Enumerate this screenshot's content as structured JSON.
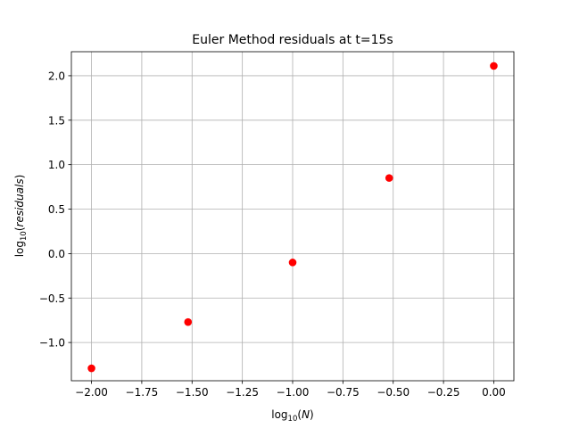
{
  "chart_data": {
    "type": "scatter",
    "title": "Euler Method residuals at t=15s",
    "xlabel": {
      "prefix": "log",
      "sub": "10",
      "arg": "N"
    },
    "ylabel": {
      "prefix": "log",
      "sub": "10",
      "arg": "residuals"
    },
    "xlim": [
      -2.1,
      0.1
    ],
    "ylim": [
      -1.43,
      2.27
    ],
    "xticks": [
      -2.0,
      -1.75,
      -1.5,
      -1.25,
      -1.0,
      -0.75,
      -0.5,
      -0.25,
      0.0
    ],
    "xtick_labels": [
      "−2.00",
      "−1.75",
      "−1.50",
      "−1.25",
      "−1.00",
      "−0.75",
      "−0.50",
      "−0.25",
      "0.00"
    ],
    "yticks": [
      -1.0,
      -0.5,
      0.0,
      0.5,
      1.0,
      1.5,
      2.0
    ],
    "ytick_labels": [
      "−1.0",
      "−0.5",
      "0.0",
      "0.5",
      "1.0",
      "1.5",
      "2.0"
    ],
    "grid": true,
    "series": [
      {
        "color": "#ff0000",
        "marker": "circle",
        "x": [
          -2.0,
          -1.52,
          -1.0,
          -0.52,
          0.0
        ],
        "y": [
          -1.29,
          -0.77,
          -0.1,
          0.85,
          2.11
        ]
      }
    ]
  }
}
